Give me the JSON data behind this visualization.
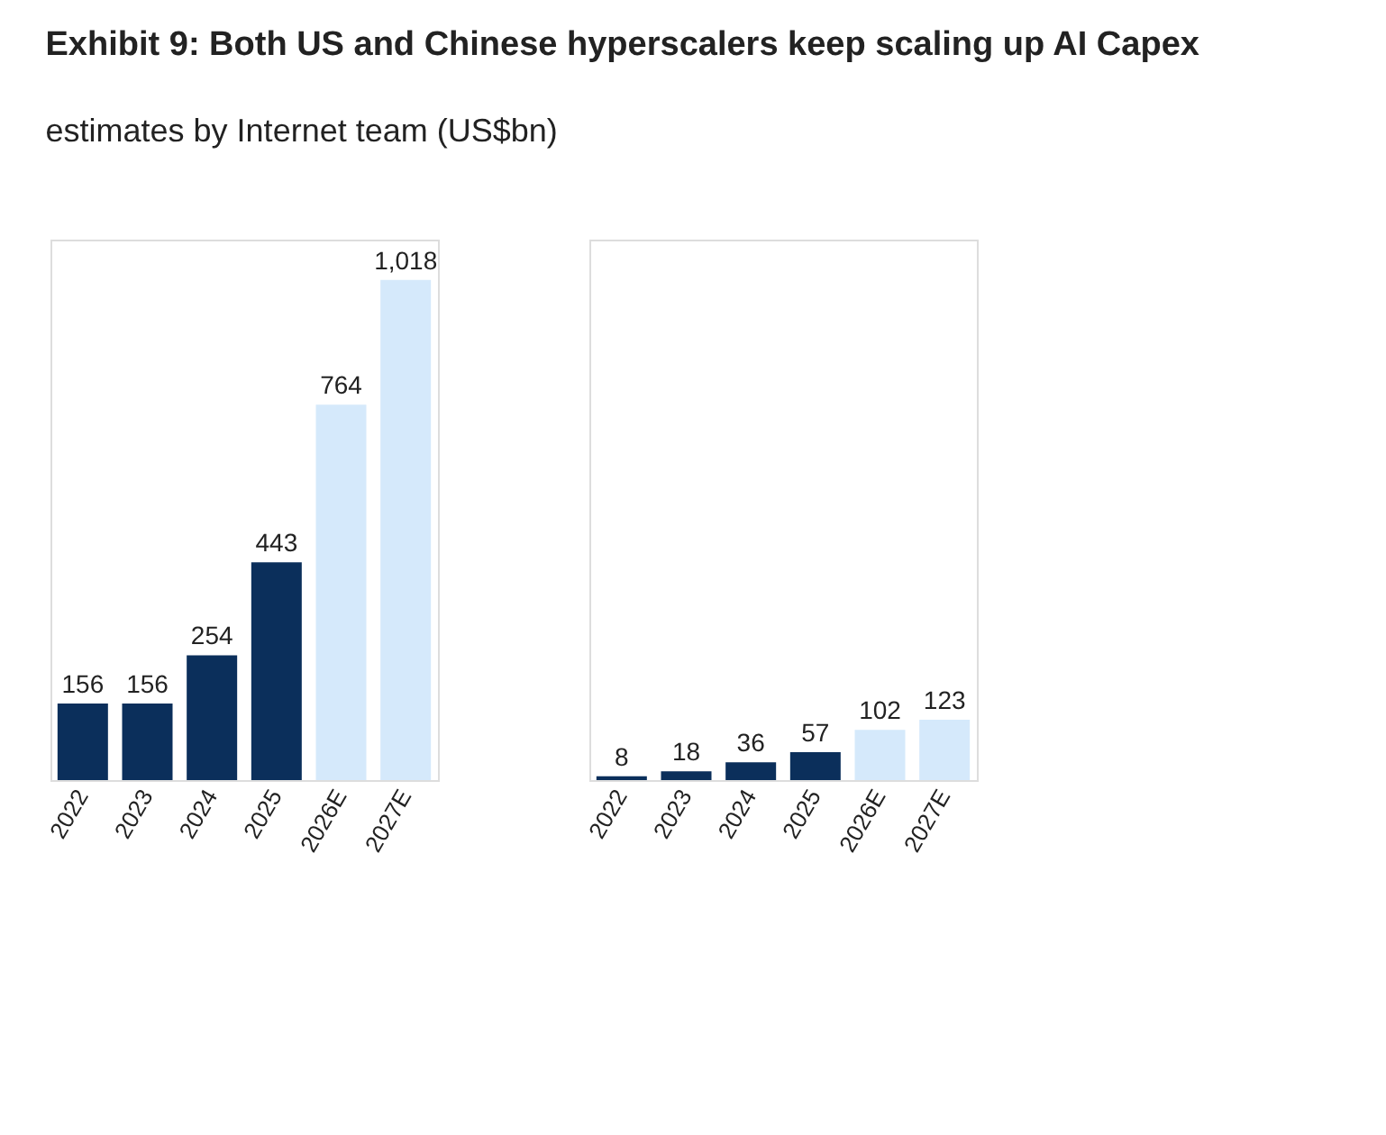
{
  "chart_data": [
    {
      "type": "bar",
      "title": "Exhibit 9: Both US and Chinese hyperscalers keep scaling up AI Capex",
      "subtitle": "estimates by Internet team (US$bn)",
      "categories": [
        "2022",
        "2023",
        "2024",
        "2025",
        "2026E",
        "2027E"
      ],
      "values": [
        156,
        156,
        254,
        443,
        764,
        1018
      ],
      "value_labels": [
        "156",
        "156",
        "254",
        "443",
        "764",
        "1,018"
      ],
      "colors": [
        "#0b2f5b",
        "#0b2f5b",
        "#0b2f5b",
        "#0b2f5b",
        "#d5e9fb",
        "#d5e9fb"
      ]
    },
    {
      "type": "bar",
      "categories": [
        "2022",
        "2023",
        "2024",
        "2025",
        "2026E",
        "2027E"
      ],
      "values": [
        8,
        18,
        36,
        57,
        102,
        123
      ],
      "data_labels": true,
      "colors": [
        "#0b2f5b",
        "#0b2f5b",
        "#0b2f5b",
        "#0b2f5b",
        "#d5e9fb",
        "#d5e9fb"
      ]
    }
  ]
}
